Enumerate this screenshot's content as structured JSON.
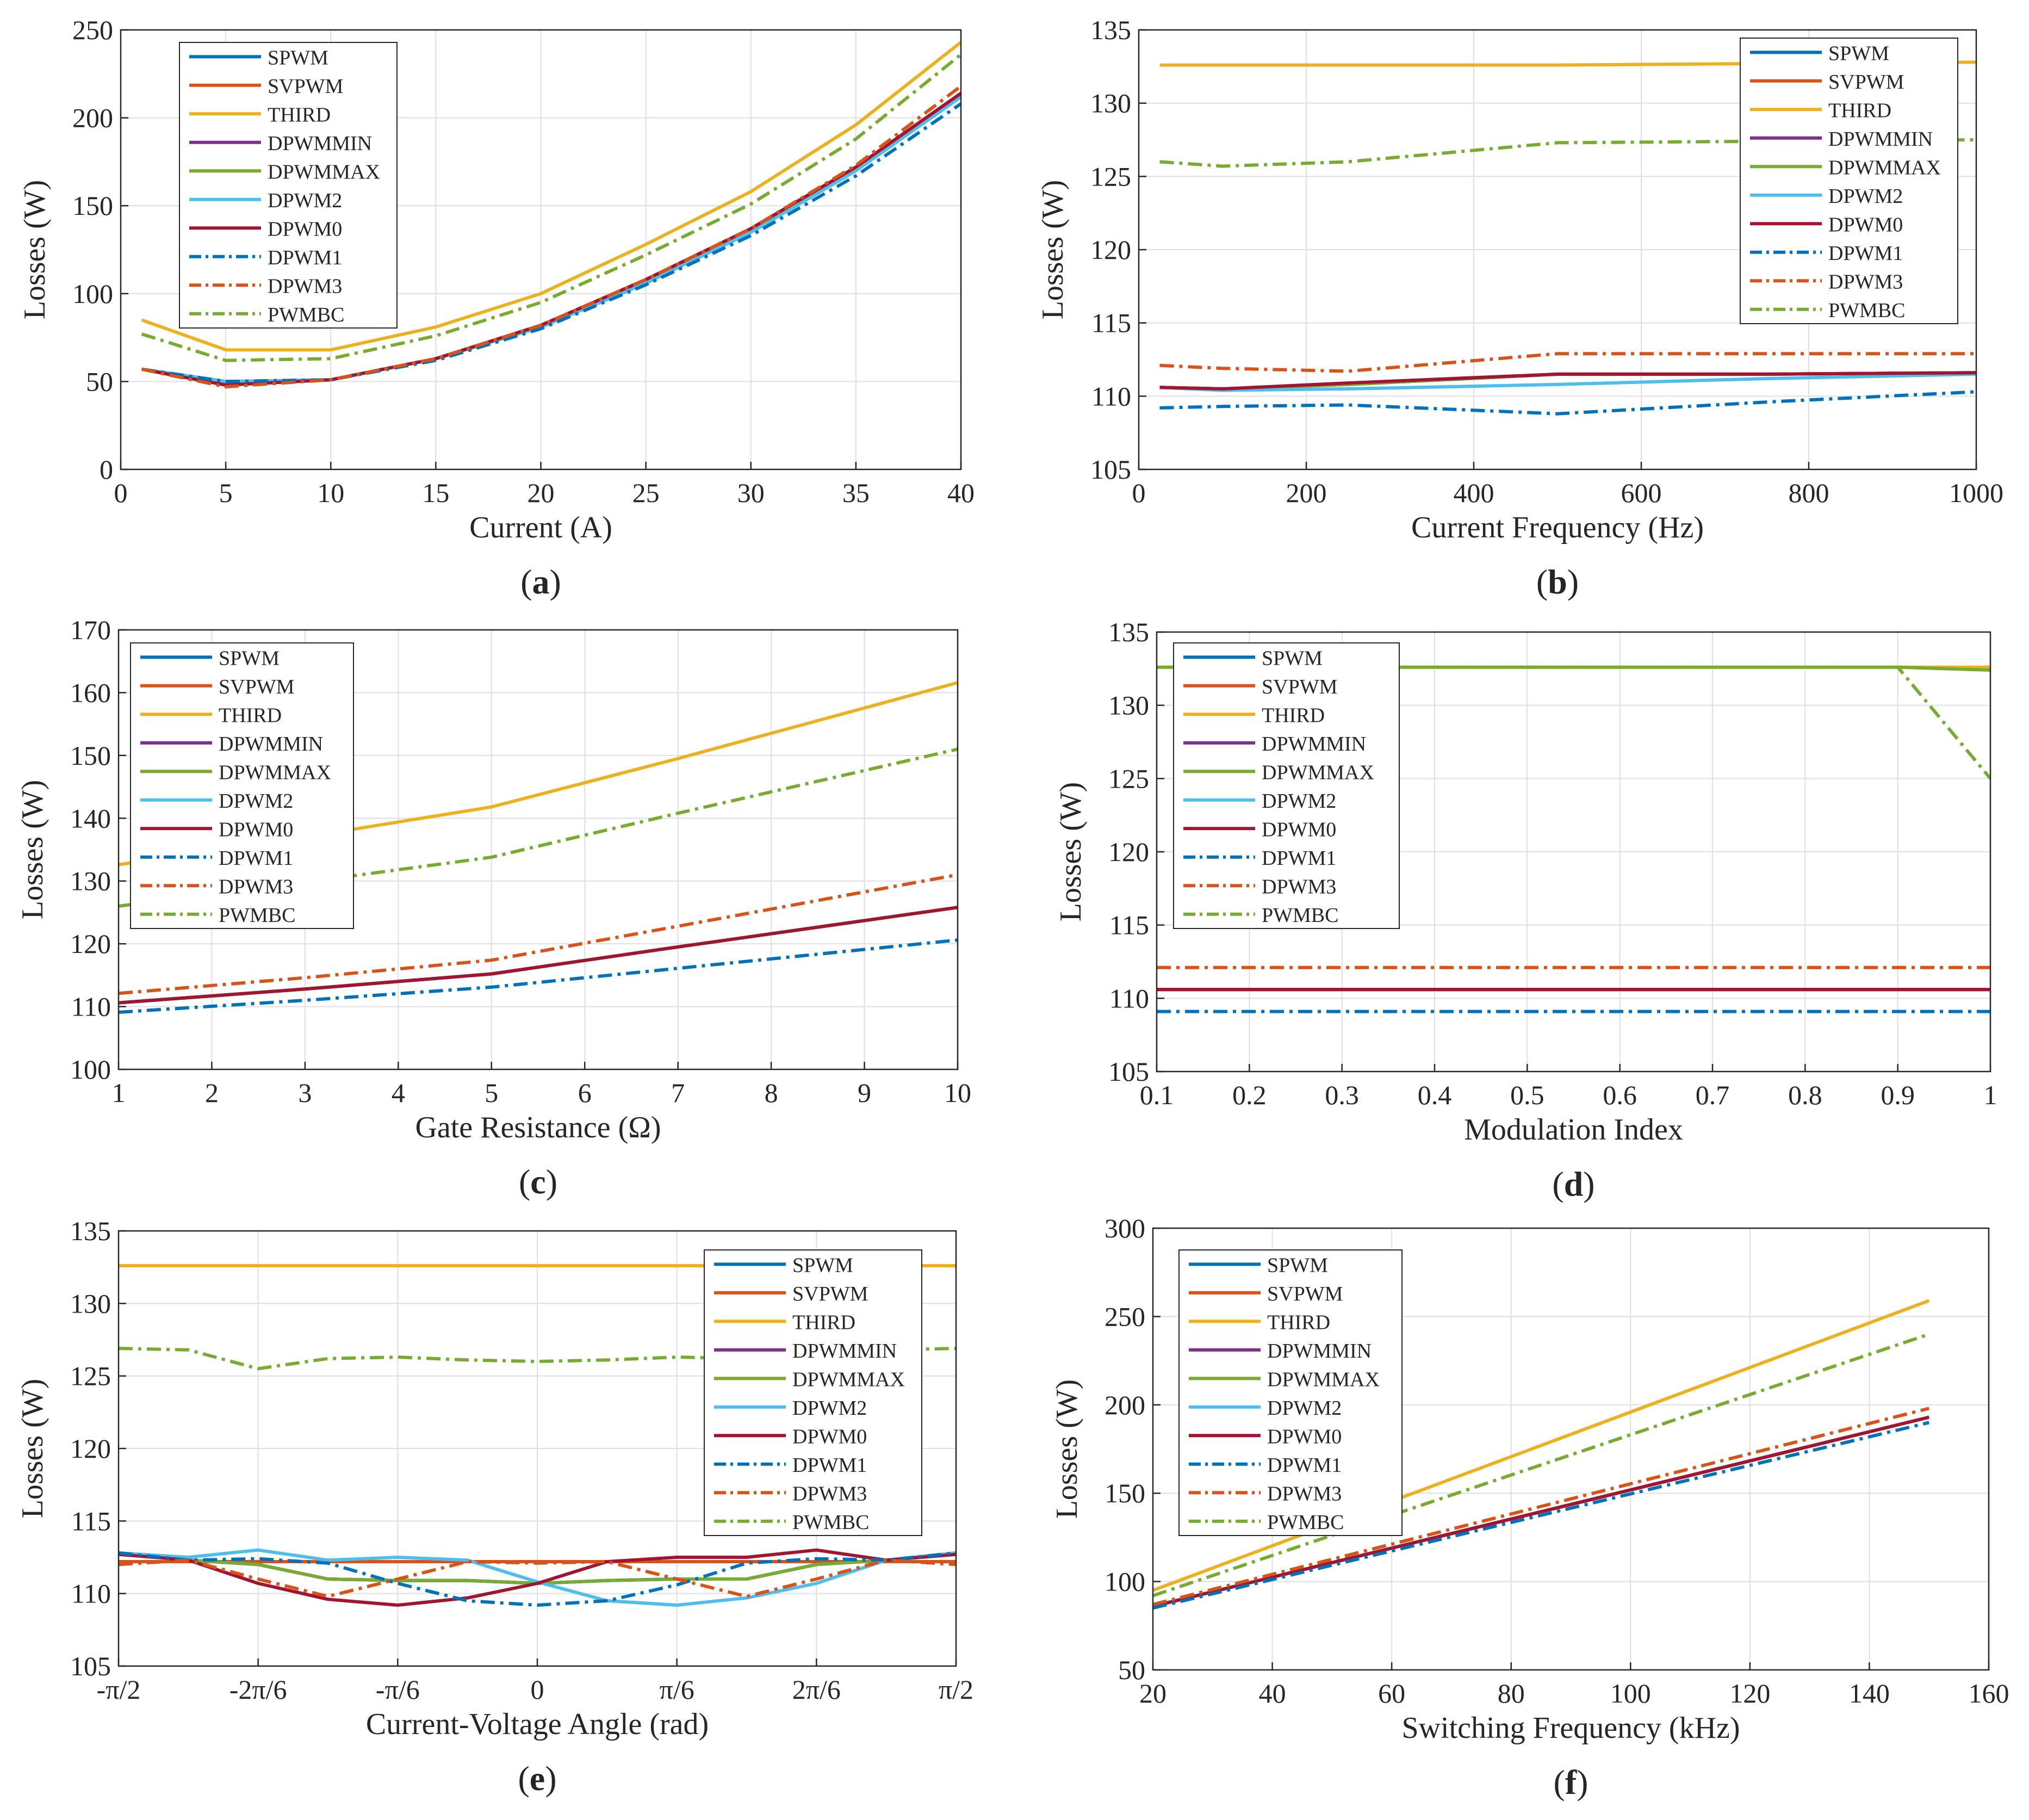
{
  "figure": {
    "ylabel": "Losses (W)",
    "colors": {
      "SPWM": "#0072BD",
      "SVPWM": "#D95319",
      "THIRD": "#EDB120",
      "DPWMMIN": "#7E2F8E",
      "DPWMMAX": "#77AC30",
      "DPWM2": "#4DBEEE",
      "DPWM0": "#A2142F",
      "DPWM1": "#0072BD",
      "DPWM3": "#D95319",
      "PWMBC": "#77AC30"
    }
  },
  "chart_data": [
    {
      "id": "a",
      "type": "line",
      "panel_label": "(a)",
      "xlabel": "Current (A)",
      "ylabel": "Losses (W)",
      "xlim": [
        0,
        40
      ],
      "ylim": [
        0,
        250
      ],
      "xticks": [
        0,
        5,
        10,
        15,
        20,
        25,
        30,
        35,
        40
      ],
      "xtick_labels": [
        "0",
        "5",
        "10",
        "15",
        "20",
        "25",
        "30",
        "35",
        "40"
      ],
      "yticks": [
        0,
        50,
        100,
        150,
        200,
        250
      ],
      "ytick_labels": [
        "0",
        "50",
        "100",
        "150",
        "200",
        "250"
      ],
      "legend": "top-left",
      "x": [
        1,
        5,
        10,
        15,
        20,
        25,
        30,
        35,
        40
      ],
      "series": [
        {
          "name": "SPWM",
          "style": "solid",
          "values": [
            57,
            50,
            51,
            63,
            81,
            106,
            135,
            170,
            212
          ]
        },
        {
          "name": "SVPWM",
          "style": "solid",
          "values": [
            57,
            49,
            51,
            63,
            81,
            106,
            135,
            170,
            212
          ]
        },
        {
          "name": "THIRD",
          "style": "solid",
          "values": [
            85,
            68,
            68,
            81,
            100,
            128,
            158,
            196,
            243
          ]
        },
        {
          "name": "DPWMMIN",
          "style": "solid",
          "values": [
            57,
            50,
            51,
            63,
            81,
            106,
            135,
            170,
            212
          ]
        },
        {
          "name": "DPWMMAX",
          "style": "solid",
          "values": [
            57,
            50,
            51,
            63,
            81,
            106,
            135,
            170,
            212
          ]
        },
        {
          "name": "DPWM2",
          "style": "solid",
          "values": [
            57,
            50,
            51,
            63,
            81,
            106,
            135,
            170,
            212
          ]
        },
        {
          "name": "DPWM0",
          "style": "solid",
          "values": [
            57,
            48,
            51,
            63,
            82,
            108,
            137,
            172,
            214
          ]
        },
        {
          "name": "DPWM1",
          "style": "dashdot",
          "values": [
            57,
            50,
            51,
            62,
            80,
            105,
            133,
            167,
            208
          ]
        },
        {
          "name": "DPWM3",
          "style": "dashdot",
          "values": [
            57,
            47,
            51,
            63,
            82,
            108,
            137,
            173,
            218
          ]
        },
        {
          "name": "PWMBC",
          "style": "dashdot",
          "values": [
            77,
            62,
            63,
            76,
            95,
            122,
            151,
            188,
            236
          ]
        }
      ]
    },
    {
      "id": "b",
      "type": "line",
      "panel_label": "(b)",
      "xlabel": "Current Frequency (Hz)",
      "ylabel": "Losses (W)",
      "xlim": [
        0,
        1000
      ],
      "ylim": [
        105,
        135
      ],
      "xticks": [
        0,
        200,
        400,
        600,
        800,
        1000
      ],
      "xtick_labels": [
        "0",
        "200",
        "400",
        "600",
        "800",
        "1000"
      ],
      "yticks": [
        105,
        110,
        115,
        120,
        125,
        130,
        135
      ],
      "ytick_labels": [
        "105",
        "110",
        "115",
        "120",
        "125",
        "130",
        "135"
      ],
      "legend": "top-right",
      "x": [
        25,
        100,
        250,
        500,
        750,
        1000
      ],
      "series": [
        {
          "name": "SPWM",
          "style": "solid",
          "values": [
            110.6,
            110.5,
            110.8,
            111.5,
            111.5,
            111.6
          ]
        },
        {
          "name": "SVPWM",
          "style": "solid",
          "values": [
            110.6,
            110.5,
            110.8,
            111.5,
            111.5,
            111.6
          ]
        },
        {
          "name": "THIRD",
          "style": "solid",
          "values": [
            132.6,
            132.6,
            132.6,
            132.6,
            132.7,
            132.8
          ]
        },
        {
          "name": "DPWMMIN",
          "style": "solid",
          "values": [
            110.6,
            110.5,
            110.8,
            111.5,
            111.5,
            111.6
          ]
        },
        {
          "name": "DPWMMAX",
          "style": "solid",
          "values": [
            110.6,
            110.5,
            110.8,
            111.5,
            111.5,
            111.6
          ]
        },
        {
          "name": "DPWM2",
          "style": "solid",
          "values": [
            110.6,
            110.4,
            110.5,
            110.8,
            111.2,
            111.5
          ]
        },
        {
          "name": "DPWM0",
          "style": "solid",
          "values": [
            110.6,
            110.5,
            110.9,
            111.5,
            111.5,
            111.6
          ]
        },
        {
          "name": "DPWM1",
          "style": "dashdot",
          "values": [
            109.2,
            109.3,
            109.4,
            108.8,
            109.6,
            110.3
          ]
        },
        {
          "name": "DPWM3",
          "style": "dashdot",
          "values": [
            112.1,
            111.9,
            111.7,
            112.9,
            112.9,
            112.9
          ]
        },
        {
          "name": "PWMBC",
          "style": "dashdot",
          "values": [
            126.0,
            125.7,
            126.0,
            127.3,
            127.4,
            127.5
          ]
        }
      ]
    },
    {
      "id": "c",
      "type": "line",
      "panel_label": "(c)",
      "xlabel": "Gate Resistance (Ω)",
      "ylabel": "Losses (W)",
      "xlim": [
        1,
        10
      ],
      "ylim": [
        100,
        170
      ],
      "xticks": [
        1,
        2,
        3,
        4,
        5,
        6,
        7,
        8,
        9,
        10
      ],
      "xtick_labels": [
        "1",
        "2",
        "3",
        "4",
        "5",
        "6",
        "7",
        "8",
        "9",
        "10"
      ],
      "yticks": [
        100,
        110,
        120,
        130,
        140,
        150,
        160,
        170
      ],
      "ytick_labels": [
        "100",
        "110",
        "120",
        "130",
        "140",
        "150",
        "160",
        "170"
      ],
      "legend": "top-left",
      "x": [
        1,
        3,
        5,
        7,
        10
      ],
      "series": [
        {
          "name": "SPWM",
          "style": "solid",
          "values": [
            110.6,
            112.8,
            115.2,
            119.5,
            125.8
          ]
        },
        {
          "name": "SVPWM",
          "style": "solid",
          "values": [
            110.6,
            112.8,
            115.2,
            119.5,
            125.8
          ]
        },
        {
          "name": "THIRD",
          "style": "solid",
          "values": [
            132.6,
            137.0,
            141.8,
            149.5,
            161.6
          ]
        },
        {
          "name": "DPWMMIN",
          "style": "solid",
          "values": [
            110.6,
            112.8,
            115.2,
            119.5,
            125.8
          ]
        },
        {
          "name": "DPWMMAX",
          "style": "solid",
          "values": [
            110.6,
            112.8,
            115.2,
            119.5,
            125.8
          ]
        },
        {
          "name": "DPWM2",
          "style": "solid",
          "values": [
            110.6,
            112.8,
            115.2,
            119.5,
            125.8
          ]
        },
        {
          "name": "DPWM0",
          "style": "solid",
          "values": [
            110.6,
            112.8,
            115.2,
            119.5,
            125.8
          ]
        },
        {
          "name": "DPWM1",
          "style": "dashdot",
          "values": [
            109.1,
            111.0,
            113.1,
            116.1,
            120.6
          ]
        },
        {
          "name": "DPWM3",
          "style": "dashdot",
          "values": [
            112.1,
            114.6,
            117.4,
            122.8,
            131.0
          ]
        },
        {
          "name": "PWMBC",
          "style": "dashdot",
          "values": [
            126.0,
            129.8,
            133.8,
            140.8,
            151.0
          ]
        }
      ]
    },
    {
      "id": "d",
      "type": "line",
      "panel_label": "(d)",
      "xlabel": "Modulation Index",
      "ylabel": "Losses (W)",
      "xlim": [
        0.1,
        1
      ],
      "ylim": [
        105,
        135
      ],
      "xticks": [
        0.1,
        0.2,
        0.3,
        0.4,
        0.5,
        0.6,
        0.7,
        0.8,
        0.9,
        1
      ],
      "xtick_labels": [
        "0.1",
        "0.2",
        "0.3",
        "0.4",
        "0.5",
        "0.6",
        "0.7",
        "0.8",
        "0.9",
        "1"
      ],
      "yticks": [
        105,
        110,
        115,
        120,
        125,
        130,
        135
      ],
      "ytick_labels": [
        "105",
        "110",
        "115",
        "120",
        "125",
        "130",
        "135"
      ],
      "legend": "top-left",
      "x": [
        0.1,
        0.9,
        1.0
      ],
      "series": [
        {
          "name": "SPWM",
          "style": "solid",
          "values": [
            110.6,
            110.6,
            110.6
          ]
        },
        {
          "name": "SVPWM",
          "style": "solid",
          "values": [
            110.6,
            110.6,
            110.6
          ]
        },
        {
          "name": "THIRD",
          "style": "solid",
          "values": [
            132.6,
            132.6,
            132.6
          ]
        },
        {
          "name": "DPWMMIN",
          "style": "solid",
          "values": [
            110.6,
            110.6,
            110.6
          ]
        },
        {
          "name": "DPWMMAX",
          "style": "solid",
          "values": [
            132.6,
            132.6,
            132.4
          ]
        },
        {
          "name": "DPWM2",
          "style": "solid",
          "values": [
            110.6,
            110.6,
            110.6
          ]
        },
        {
          "name": "DPWM0",
          "style": "solid",
          "values": [
            110.6,
            110.6,
            110.6
          ]
        },
        {
          "name": "DPWM1",
          "style": "dashdot",
          "values": [
            109.1,
            109.1,
            109.1
          ]
        },
        {
          "name": "DPWM3",
          "style": "dashdot",
          "values": [
            112.1,
            112.1,
            112.1
          ]
        },
        {
          "name": "PWMBC",
          "style": "dashdot",
          "values": [
            132.6,
            132.6,
            125.0
          ]
        }
      ]
    },
    {
      "id": "e",
      "type": "line",
      "panel_label": "(e)",
      "xlabel": "Current-Voltage Angle (rad)",
      "ylabel": "Losses (W)",
      "xlim": [
        -6,
        6
      ],
      "ylim": [
        105,
        135
      ],
      "xticks": [
        -6,
        -4,
        -2,
        0,
        2,
        4,
        6
      ],
      "xtick_labels": [
        "-π/2",
        "-2π/6",
        "-π/6",
        "0",
        "π/6",
        "2π/6",
        "π/2"
      ],
      "yticks": [
        105,
        110,
        115,
        120,
        125,
        130,
        135
      ],
      "ytick_labels": [
        "105",
        "110",
        "115",
        "120",
        "125",
        "130",
        "135"
      ],
      "legend": "top-right",
      "x": [
        -6,
        -5,
        -4,
        -3,
        -2,
        -1,
        0,
        1,
        2,
        3,
        4,
        5,
        6
      ],
      "series": [
        {
          "name": "SPWM",
          "style": "solid",
          "values": [
            112.8,
            112.3,
            112.0,
            111.0,
            110.9,
            110.9,
            110.7,
            110.9,
            111.0,
            111.0,
            112.0,
            112.3,
            112.8
          ]
        },
        {
          "name": "SVPWM",
          "style": "solid",
          "values": [
            112.2,
            112.2,
            112.2,
            112.2,
            112.2,
            112.2,
            112.2,
            112.2,
            112.2,
            112.2,
            112.2,
            112.2,
            112.2
          ]
        },
        {
          "name": "THIRD",
          "style": "solid",
          "values": [
            132.6,
            132.6,
            132.6,
            132.6,
            132.6,
            132.6,
            132.6,
            132.6,
            132.6,
            132.6,
            132.6,
            132.6,
            132.6
          ]
        },
        {
          "name": "DPWMMIN",
          "style": "solid",
          "values": [
            112.8,
            112.3,
            112.0,
            111.0,
            110.9,
            110.9,
            110.7,
            110.9,
            111.0,
            111.0,
            112.0,
            112.3,
            112.8
          ]
        },
        {
          "name": "DPWMMAX",
          "style": "solid",
          "values": [
            112.8,
            112.3,
            112.0,
            111.0,
            110.9,
            110.9,
            110.7,
            110.9,
            111.0,
            111.0,
            112.0,
            112.3,
            112.8
          ]
        },
        {
          "name": "DPWM2",
          "style": "solid",
          "values": [
            112.8,
            112.5,
            113.0,
            112.3,
            112.5,
            112.3,
            110.8,
            109.5,
            109.2,
            109.7,
            110.7,
            112.3,
            112.8
          ]
        },
        {
          "name": "DPWM0",
          "style": "solid",
          "values": [
            112.7,
            112.3,
            110.7,
            109.6,
            109.2,
            109.7,
            110.7,
            112.2,
            112.5,
            112.5,
            113.0,
            112.3,
            112.7
          ]
        },
        {
          "name": "DPWM1",
          "style": "dashdot",
          "values": [
            112.8,
            112.3,
            112.4,
            112.1,
            110.7,
            109.5,
            109.2,
            109.5,
            110.6,
            112.1,
            112.4,
            112.3,
            112.8
          ]
        },
        {
          "name": "DPWM3",
          "style": "dashdot",
          "values": [
            112.0,
            112.3,
            111.0,
            109.8,
            111.0,
            112.2,
            112.1,
            112.2,
            111.0,
            109.8,
            111.0,
            112.3,
            112.0
          ]
        },
        {
          "name": "PWMBC",
          "style": "dashdot",
          "values": [
            126.9,
            126.8,
            125.5,
            126.2,
            126.3,
            126.1,
            126.0,
            126.1,
            126.3,
            126.2,
            126.8,
            126.8,
            126.9
          ]
        }
      ]
    },
    {
      "id": "f",
      "type": "line",
      "panel_label": "(f)",
      "xlabel": "Switching Frequency (kHz)",
      "ylabel": "Losses (W)",
      "xlim": [
        20,
        160
      ],
      "ylim": [
        50,
        300
      ],
      "xticks": [
        20,
        40,
        60,
        80,
        100,
        120,
        140,
        160
      ],
      "xtick_labels": [
        "20",
        "40",
        "60",
        "80",
        "100",
        "120",
        "140",
        "160"
      ],
      "yticks": [
        50,
        100,
        150,
        200,
        250,
        300
      ],
      "ytick_labels": [
        "50",
        "100",
        "150",
        "200",
        "250",
        "300"
      ],
      "legend": "top-left",
      "x": [
        20,
        150
      ],
      "series": [
        {
          "name": "SPWM",
          "style": "solid",
          "values": [
            86,
            193
          ]
        },
        {
          "name": "SVPWM",
          "style": "solid",
          "values": [
            86,
            193
          ]
        },
        {
          "name": "THIRD",
          "style": "solid",
          "values": [
            95,
            259
          ]
        },
        {
          "name": "DPWMMIN",
          "style": "solid",
          "values": [
            86,
            193
          ]
        },
        {
          "name": "DPWMMAX",
          "style": "solid",
          "values": [
            86,
            193
          ]
        },
        {
          "name": "DPWM2",
          "style": "solid",
          "values": [
            86,
            193
          ]
        },
        {
          "name": "DPWM0",
          "style": "solid",
          "values": [
            86,
            193
          ]
        },
        {
          "name": "DPWM1",
          "style": "dashdot",
          "values": [
            85,
            190
          ]
        },
        {
          "name": "DPWM3",
          "style": "dashdot",
          "values": [
            87,
            198
          ]
        },
        {
          "name": "PWMBC",
          "style": "dashdot",
          "values": [
            92,
            240
          ]
        }
      ]
    }
  ]
}
